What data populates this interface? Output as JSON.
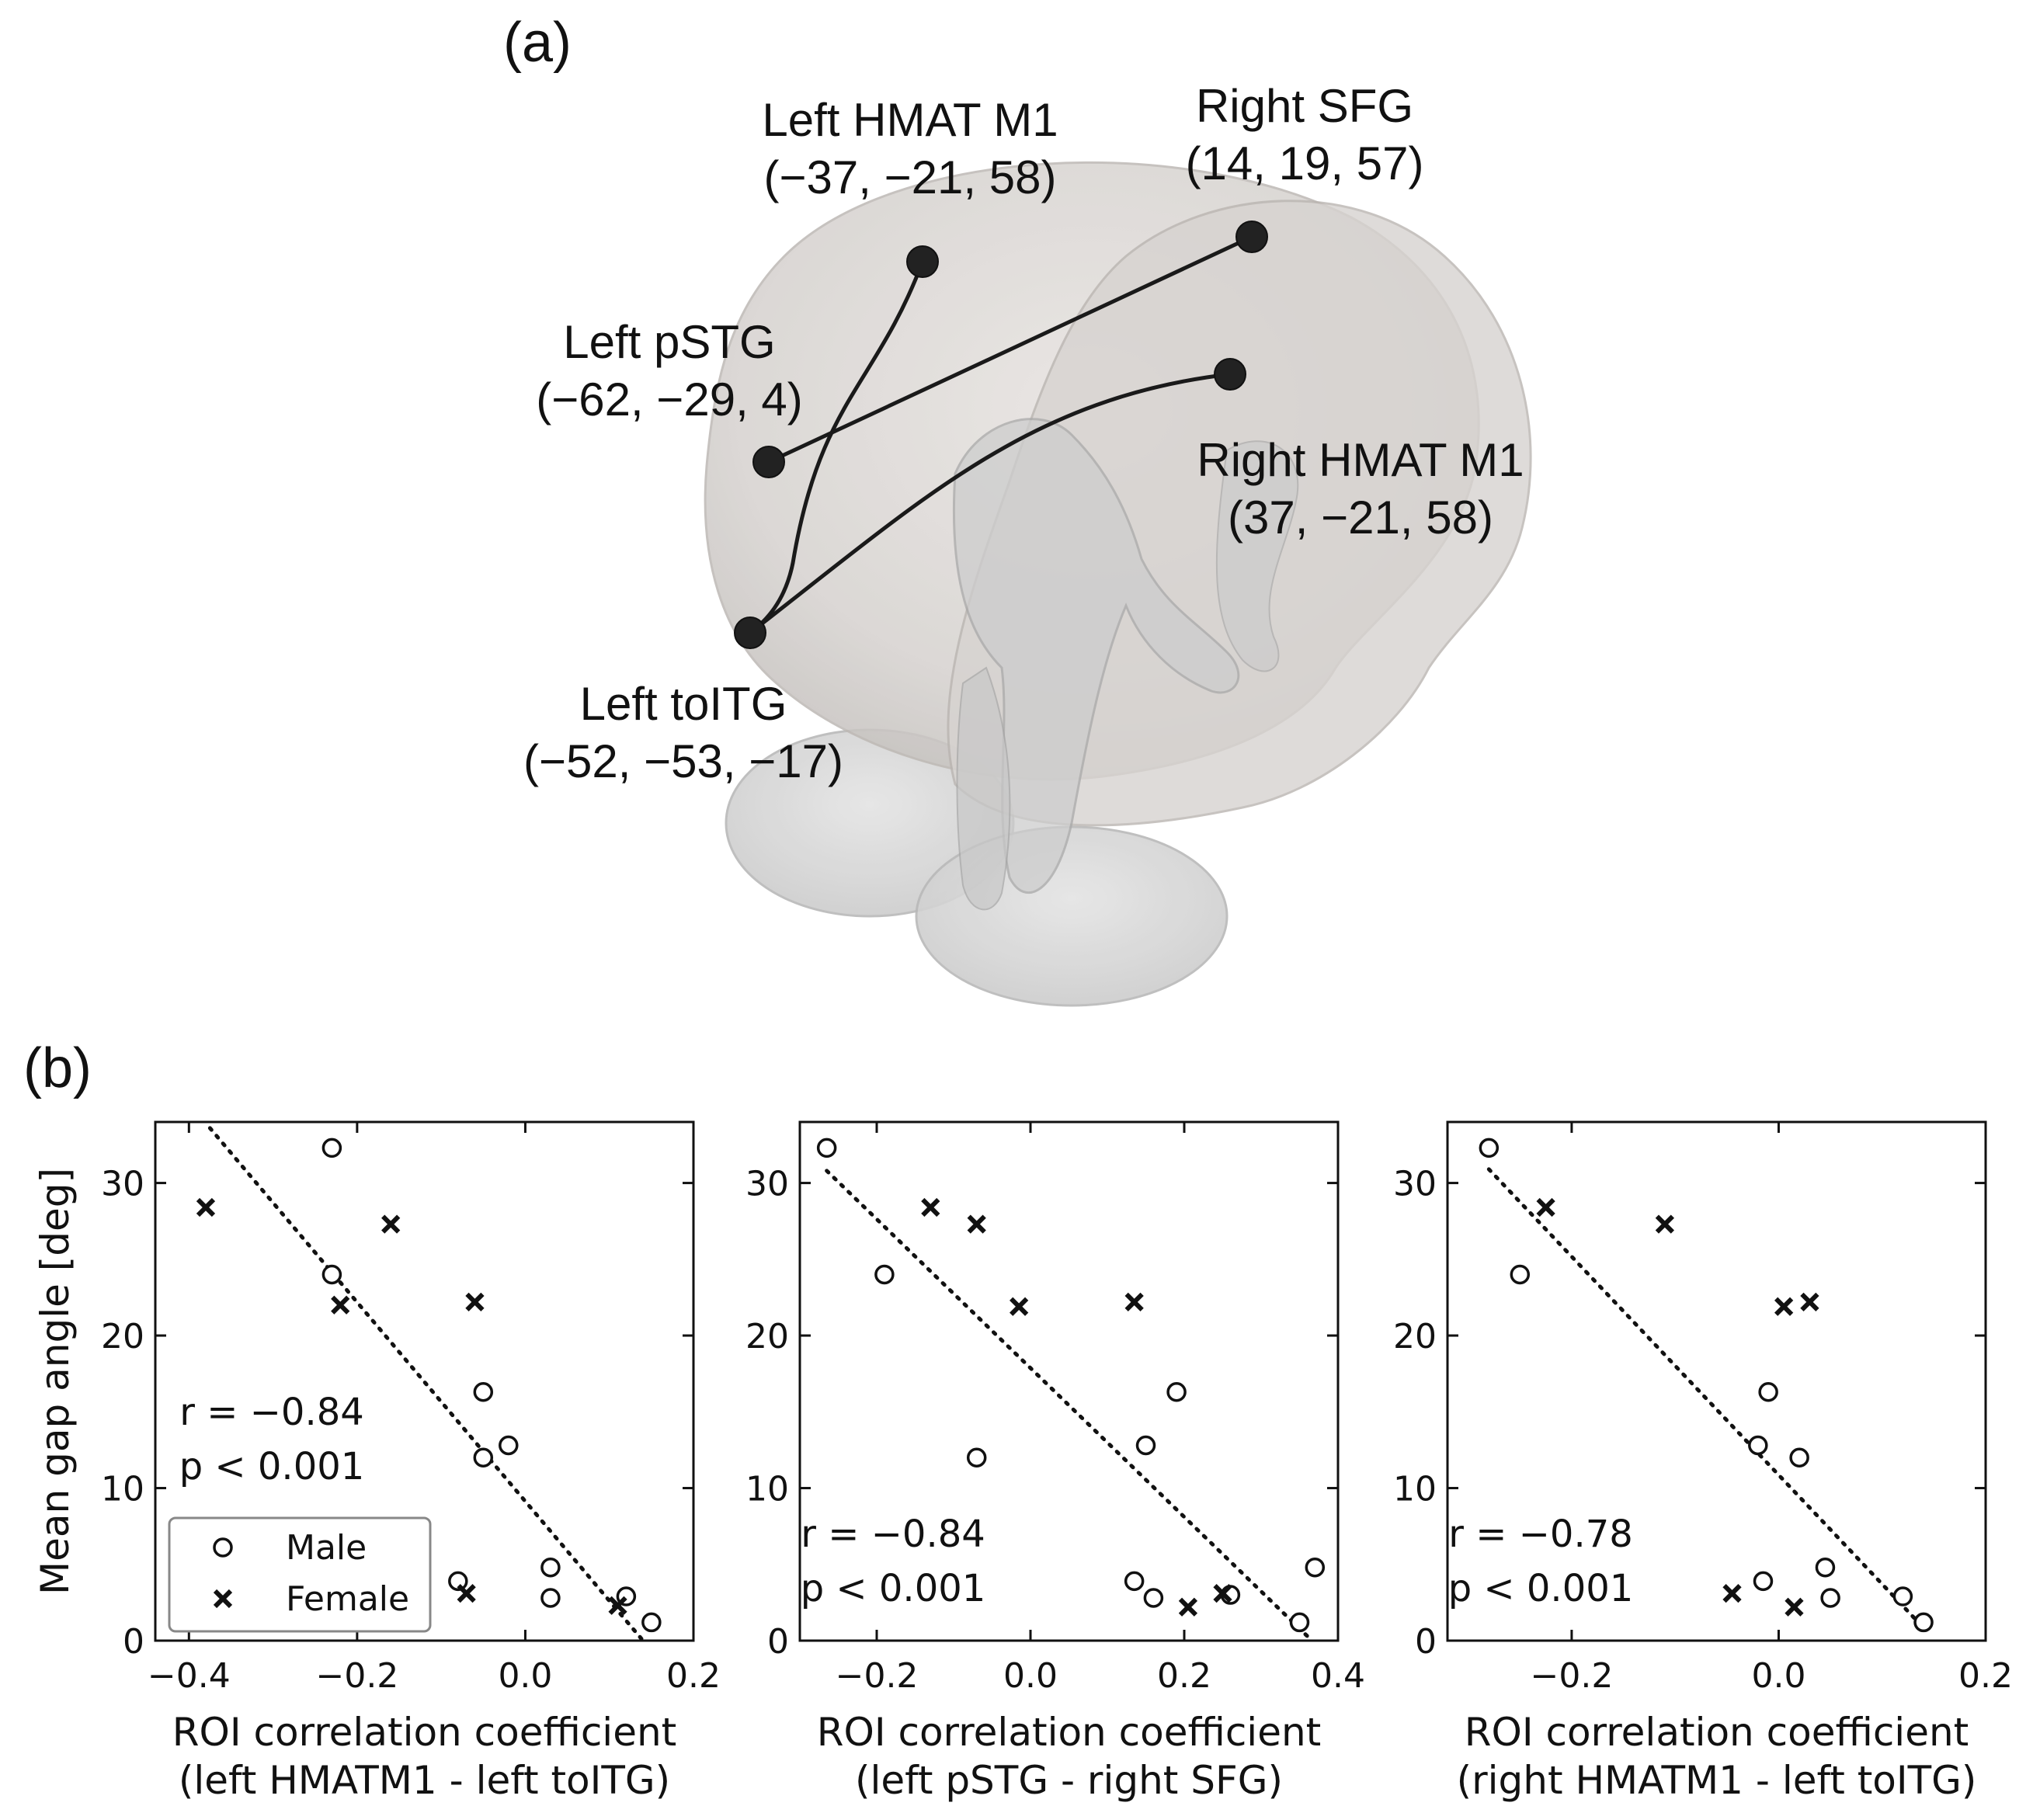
{
  "panel_a": {
    "label": "(a)",
    "rois": [
      {
        "id": "left-hmat-m1",
        "name": "Left HMAT M1",
        "coords": "(−37, −21, 58)"
      },
      {
        "id": "right-sfg",
        "name": "Right SFG",
        "coords": "(14, 19, 57)"
      },
      {
        "id": "left-pstg",
        "name": "Left pSTG",
        "coords": "(−62, −29, 4)"
      },
      {
        "id": "right-hmat-m1",
        "name": "Right HMAT M1",
        "coords": "(37, −21, 58)"
      },
      {
        "id": "left-toitg",
        "name": "Left toITG",
        "coords": "(−52, −53, −17)"
      }
    ],
    "connections": [
      [
        "left-hmat-m1",
        "left-toitg"
      ],
      [
        "left-pstg",
        "right-sfg"
      ],
      [
        "right-hmat-m1",
        "left-toitg"
      ]
    ]
  },
  "panel_b": {
    "label": "(b)"
  },
  "legend": {
    "male": "Male",
    "female": "Female"
  },
  "chart_data": [
    {
      "type": "scatter",
      "ylabel": "Mean gap angle [deg]",
      "xlabel": [
        "ROI correlation coefficient",
        "(left HMATM1 - left toITG)"
      ],
      "xlim": [
        -0.44,
        0.2
      ],
      "ylim": [
        0,
        34
      ],
      "xticks": [
        -0.4,
        -0.2,
        0.0,
        0.2
      ],
      "xtick_labels": [
        "−0.4",
        "−0.2",
        "0.0",
        "0.2"
      ],
      "yticks": [
        0,
        10,
        20,
        30
      ],
      "ytick_labels": [
        "0",
        "10",
        "20",
        "30"
      ],
      "annotation": [
        "r = −0.84",
        "p < 0.001"
      ],
      "legend_position": "lower-left",
      "series": [
        {
          "name": "Male",
          "marker": "circle",
          "points": [
            [
              -0.23,
              32.3
            ],
            [
              -0.23,
              24.0
            ],
            [
              -0.05,
              16.3
            ],
            [
              -0.02,
              12.8
            ],
            [
              -0.05,
              12.0
            ],
            [
              -0.08,
              3.9
            ],
            [
              0.03,
              4.8
            ],
            [
              0.03,
              2.8
            ],
            [
              0.12,
              2.9
            ],
            [
              0.15,
              1.2
            ]
          ]
        },
        {
          "name": "Female",
          "marker": "cross",
          "points": [
            [
              -0.38,
              28.4
            ],
            [
              -0.16,
              27.3
            ],
            [
              -0.22,
              22.0
            ],
            [
              -0.06,
              22.2
            ],
            [
              -0.07,
              3.1
            ],
            [
              0.11,
              2.3
            ]
          ]
        }
      ],
      "fit_line": [
        [
          -0.375,
          33.6
        ],
        [
          0.14,
          0
        ]
      ]
    },
    {
      "type": "scatter",
      "xlabel": [
        "ROI correlation coefficient",
        "(left pSTG - right SFG)"
      ],
      "xlim": [
        -0.3,
        0.4
      ],
      "ylim": [
        0,
        34
      ],
      "xticks": [
        -0.2,
        0.0,
        0.2,
        0.4
      ],
      "xtick_labels": [
        "−0.2",
        "0.0",
        "0.2",
        "0.4"
      ],
      "yticks": [
        0,
        10,
        20,
        30
      ],
      "ytick_labels": [
        "0",
        "10",
        "20",
        "30"
      ],
      "annotation": [
        "r = −0.84",
        "p < 0.001"
      ],
      "series": [
        {
          "name": "Male",
          "marker": "circle",
          "points": [
            [
              -0.265,
              32.3
            ],
            [
              -0.19,
              24.0
            ],
            [
              0.19,
              16.3
            ],
            [
              0.15,
              12.8
            ],
            [
              -0.07,
              12.0
            ],
            [
              0.135,
              3.9
            ],
            [
              0.16,
              2.8
            ],
            [
              0.26,
              3.0
            ],
            [
              0.37,
              4.8
            ],
            [
              0.35,
              1.2
            ]
          ]
        },
        {
          "name": "Female",
          "marker": "cross",
          "points": [
            [
              -0.13,
              28.4
            ],
            [
              -0.07,
              27.3
            ],
            [
              -0.015,
              21.9
            ],
            [
              0.135,
              22.2
            ],
            [
              0.25,
              3.1
            ],
            [
              0.205,
              2.2
            ]
          ]
        }
      ],
      "fit_line": [
        [
          -0.265,
          30.8
        ],
        [
          0.36,
          0.3
        ]
      ]
    },
    {
      "type": "scatter",
      "xlabel": [
        "ROI correlation coefficient",
        "(right HMATM1 - left toITG)"
      ],
      "xlim": [
        -0.32,
        0.2
      ],
      "ylim": [
        0,
        34
      ],
      "xticks": [
        -0.2,
        0.0,
        0.2
      ],
      "xtick_labels": [
        "−0.2",
        "0.0",
        "0.2"
      ],
      "yticks": [
        0,
        10,
        20,
        30
      ],
      "ytick_labels": [
        "0",
        "10",
        "20",
        "30"
      ],
      "annotation": [
        "r = −0.78",
        "p < 0.001"
      ],
      "series": [
        {
          "name": "Male",
          "marker": "circle",
          "points": [
            [
              -0.28,
              32.3
            ],
            [
              -0.25,
              24.0
            ],
            [
              -0.01,
              16.3
            ],
            [
              -0.02,
              12.8
            ],
            [
              0.02,
              12.0
            ],
            [
              -0.015,
              3.9
            ],
            [
              0.045,
              4.8
            ],
            [
              0.05,
              2.8
            ],
            [
              0.12,
              2.9
            ],
            [
              0.14,
              1.2
            ]
          ]
        },
        {
          "name": "Female",
          "marker": "cross",
          "points": [
            [
              -0.225,
              28.4
            ],
            [
              -0.11,
              27.3
            ],
            [
              0.005,
              21.9
            ],
            [
              0.03,
              22.2
            ],
            [
              -0.045,
              3.1
            ],
            [
              0.015,
              2.2
            ]
          ]
        }
      ],
      "fit_line": [
        [
          -0.28,
          30.9
        ],
        [
          0.135,
          1.2
        ]
      ]
    }
  ]
}
